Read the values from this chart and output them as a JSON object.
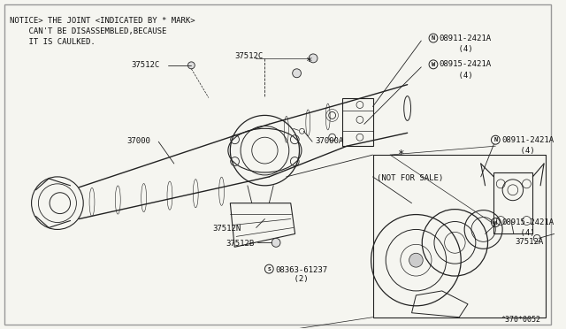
{
  "bg_color": "#f5f5f0",
  "border_color": "#888888",
  "fig_width": 6.4,
  "fig_height": 3.72,
  "notice_lines": [
    "NOTICE> THE JOINT <INDICATED BY * MARK>",
    "    CAN'T BE DISASSEMBLED,BECAUSE",
    "    IT IS CAULKED."
  ],
  "footer_text": "^370*0052",
  "line_color": "#222222",
  "text_color": "#111111"
}
